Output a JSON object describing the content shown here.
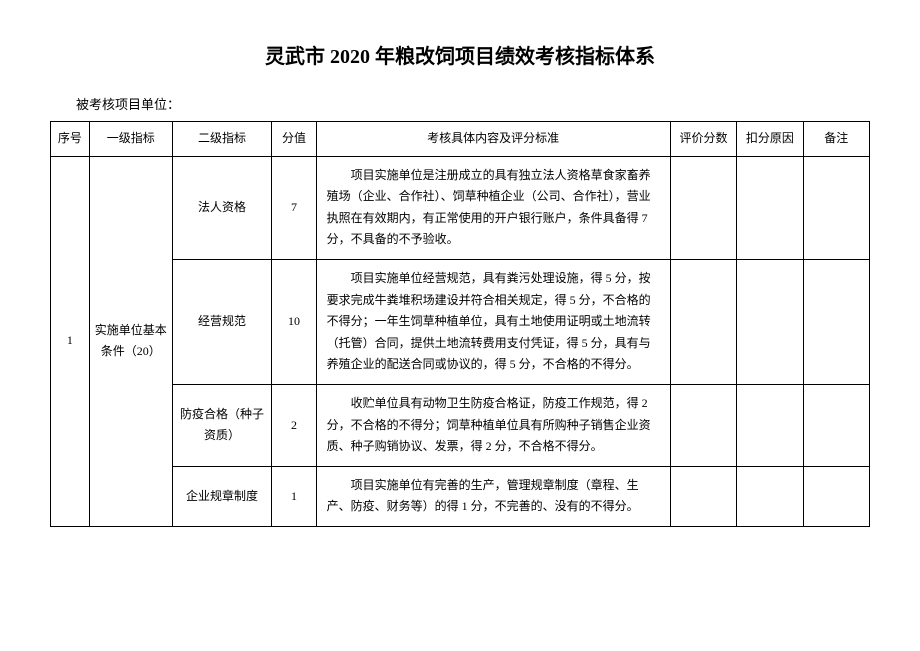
{
  "title": "灵武市 2020 年粮改饲项目绩效考核指标体系",
  "subtitle": "被考核项目单位：",
  "headers": {
    "seq": "序号",
    "level1": "一级指标",
    "level2": "二级指标",
    "score": "分值",
    "content": "考核具体内容及评分标准",
    "eval": "评价分数",
    "deduct": "扣分原因",
    "remark": "备注"
  },
  "rows": [
    {
      "seq": "1",
      "level1": "实施单位基本条件（20）",
      "level2": "法人资格",
      "score": "7",
      "content": "项目实施单位是注册成立的具有独立法人资格草食家畜养殖场（企业、合作社）、饲草种植企业（公司、合作社），营业执照在有效期内，有正常使用的开户银行账户，条件具备得 7 分，不具备的不予验收。"
    },
    {
      "level2": "经营规范",
      "score": "10",
      "content": "项目实施单位经营规范，具有粪污处理设施，得 5 分，按要求完成牛粪堆积场建设并符合相关规定，得 5 分，不合格的不得分；一年生饲草种植单位，具有土地使用证明或土地流转（托管）合同，提供土地流转费用支付凭证，得 5 分，具有与养殖企业的配送合同或协议的，得 5 分，不合格的不得分。"
    },
    {
      "level2": "防疫合格（种子资质）",
      "score": "2",
      "content": "收贮单位具有动物卫生防疫合格证，防疫工作规范，得 2 分，不合格的不得分；饲草种植单位具有所购种子销售企业资质、种子购销协议、发票，得 2 分，不合格不得分。"
    },
    {
      "level2": "企业规章制度",
      "score": "1",
      "content": "项目实施单位有完善的生产，管理规章制度（章程、生产、防疫、财务等）的得 1 分，不完善的、没有的不得分。"
    }
  ]
}
